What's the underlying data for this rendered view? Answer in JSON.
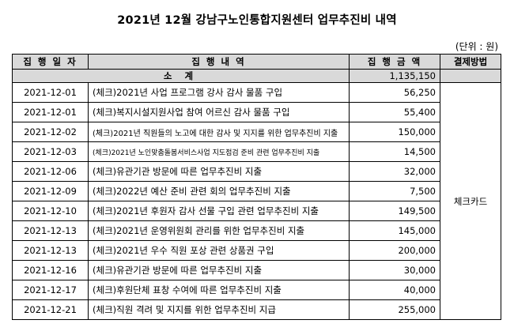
{
  "title": "2021년 12월 강남구노인통합지원센터 업무추진비 내역",
  "unit": "(단위 : 원)",
  "headers": {
    "date": "집 행 일 자",
    "detail": "집 행 내 역",
    "amount": "집 행 금 액",
    "method": "결제방법"
  },
  "subtotal": {
    "label": "소 계",
    "amount": "1,135,150"
  },
  "payment_method": "체크카드",
  "rows": [
    {
      "date": "2021-12-01",
      "detail": "(체크)2021년 사업 프로그램 강사 감사 물품 구입",
      "amount": "56,250"
    },
    {
      "date": "2021-12-01",
      "detail": "(체크)복지시설지원사업 참여 어르신 감사 물품 구입",
      "amount": "55,400"
    },
    {
      "date": "2021-12-02",
      "detail": "(체크)2021년 직원들의 노고에 대한 감사 및 지지를 위한 업무추진비 지출",
      "amount": "150,000"
    },
    {
      "date": "2021-12-03",
      "detail": "(체크)2021년 노인맞춤돌봄서비스사업 지도점검 준비 관련 업무추진비 지출",
      "amount": "14,500"
    },
    {
      "date": "2021-12-06",
      "detail": "(체크)유관기관 방문에 따른 업무추진비 지출",
      "amount": "32,000"
    },
    {
      "date": "2021-12-09",
      "detail": "(체크)2022년 예산 준비 관련 회의 업무추진비 지출",
      "amount": "7,500"
    },
    {
      "date": "2021-12-10",
      "detail": "(체크)2021년 후원자 감사 선물 구입 관련 업무추진비 지출",
      "amount": "149,500"
    },
    {
      "date": "2021-12-13",
      "detail": "(체크)2021년 운영위원회 관리를 위한 업무추진비 지출",
      "amount": "145,000"
    },
    {
      "date": "2021-12-13",
      "detail": "(체크)2021년 우수 직원 포상 관련 상품권 구입",
      "amount": "200,000"
    },
    {
      "date": "2021-12-16",
      "detail": "(체크)유관기관 방문에 따른 업무추진비 지출",
      "amount": "30,000"
    },
    {
      "date": "2021-12-17",
      "detail": "(체크)후원단체 표창 수여에 따른 업무추진비 지출",
      "amount": "40,000"
    },
    {
      "date": "2021-12-21",
      "detail": "(체크)직원 격려 및 지지를 위한 업무추진비 지급",
      "amount": "255,000"
    }
  ]
}
